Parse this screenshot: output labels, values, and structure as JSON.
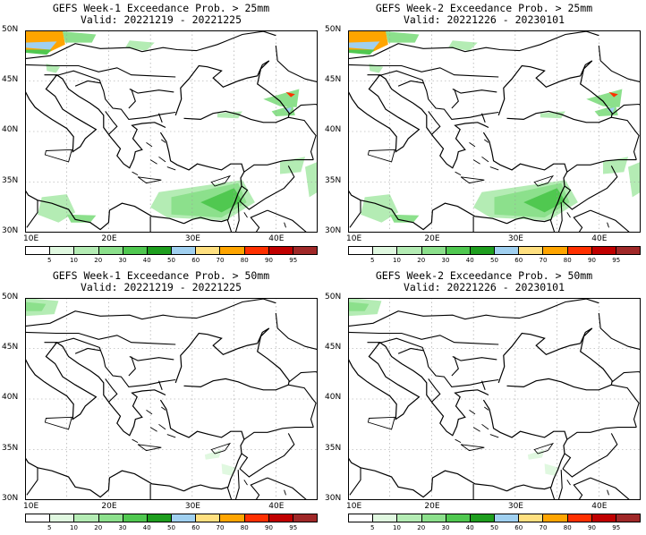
{
  "panels": [
    {
      "title": "GEFS Week-1 Exceedance Prob. > 25mm",
      "valid": "Valid: 20221219 - 20221225"
    },
    {
      "title": "GEFS Week-2 Exceedance Prob. > 25mm",
      "valid": "Valid: 20221226 - 20230101"
    },
    {
      "title": "GEFS Week-1 Exceedance Prob. > 50mm",
      "valid": "Valid: 20221219 - 20221225"
    },
    {
      "title": "GEFS Week-2 Exceedance Prob. > 50mm",
      "valid": "Valid: 20221226 - 20230101"
    }
  ],
  "axes": {
    "lat_labels": [
      "50N",
      "45N",
      "40N",
      "35N",
      "30N"
    ],
    "lon_labels": [
      "10E",
      "20E",
      "30E",
      "40E"
    ]
  },
  "colorbar": {
    "labels": [
      "5",
      "10",
      "20",
      "30",
      "40",
      "50",
      "60",
      "70",
      "80",
      "90",
      "95"
    ],
    "colors": [
      "#ffffff",
      "#e0f8e0",
      "#b4ecb4",
      "#8ce08c",
      "#50c850",
      "#1e9e1e",
      "#a0d0f0",
      "#ffe080",
      "#ffa500",
      "#ff3000",
      "#c00000",
      "#a02828"
    ]
  }
}
